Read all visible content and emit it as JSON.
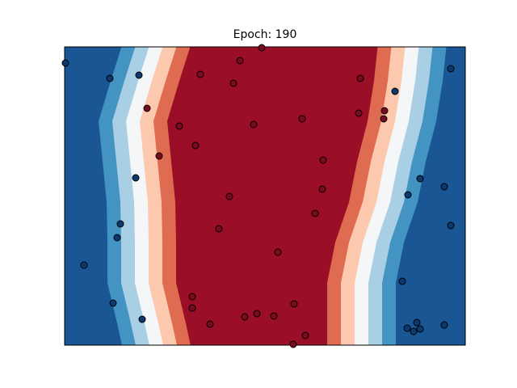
{
  "chart_data": {
    "type": "scatter",
    "title": "Epoch: 190",
    "xlim": [
      0,
      496
    ],
    "ylim": [
      0,
      369
    ],
    "series": [
      {
        "color": "#0b3a70",
        "x": [
          1,
          56,
          92,
          409,
          478,
          88,
          69,
          65,
          24,
          60,
          96,
          440,
          425,
          470,
          478,
          418,
          424,
          436,
          432,
          440,
          470
        ],
        "values": [
          349,
          330,
          334,
          314,
          342,
          207,
          150,
          133,
          99,
          52,
          32,
          206,
          186,
          196,
          148,
          79,
          21,
          28,
          17,
          20,
          25
        ]
      },
      {
        "color": "#7a0a1e",
        "x": [
          217,
          244,
          168,
          209,
          366,
          102,
          142,
          234,
          294,
          364,
          396,
          395,
          162,
          117,
          320,
          319,
          204,
          310,
          191,
          264,
          158,
          158,
          180,
          223,
          238,
          259,
          284,
          298,
          283
        ],
        "values": [
          352,
          368,
          335,
          324,
          330,
          293,
          271,
          273,
          280,
          287,
          290,
          280,
          247,
          234,
          229,
          193,
          184,
          163,
          144,
          115,
          60,
          46,
          26,
          35,
          39,
          36,
          51,
          12,
          1
        ]
      }
    ]
  }
}
